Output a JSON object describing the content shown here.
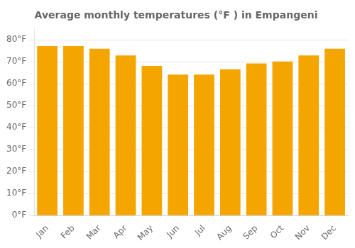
{
  "chart_data": {
    "type": "bar",
    "title": "Average monthly temperatures (°F ) in Empangeni",
    "categories": [
      "Jan",
      "Feb",
      "Mar",
      "Apr",
      "May",
      "Jun",
      "Jul",
      "Aug",
      "Sep",
      "Oct",
      "Nov",
      "Dec"
    ],
    "values": [
      77.2,
      77.2,
      76.0,
      72.9,
      68.2,
      64.2,
      64.2,
      66.6,
      69.3,
      70.2,
      72.9,
      76.0
    ],
    "color": "#F5A500",
    "ylim": [
      0,
      85
    ],
    "yticks": [
      {
        "value": 0,
        "label": "0°F"
      },
      {
        "value": 10,
        "label": "10°F"
      },
      {
        "value": 20,
        "label": "20°F"
      },
      {
        "value": 30,
        "label": "30°F"
      },
      {
        "value": 40,
        "label": "40°F"
      },
      {
        "value": 50,
        "label": "50°F"
      },
      {
        "value": 60,
        "label": "60°F"
      },
      {
        "value": 70,
        "label": "70°F"
      },
      {
        "value": 80,
        "label": "80°F"
      }
    ],
    "grid": true
  }
}
